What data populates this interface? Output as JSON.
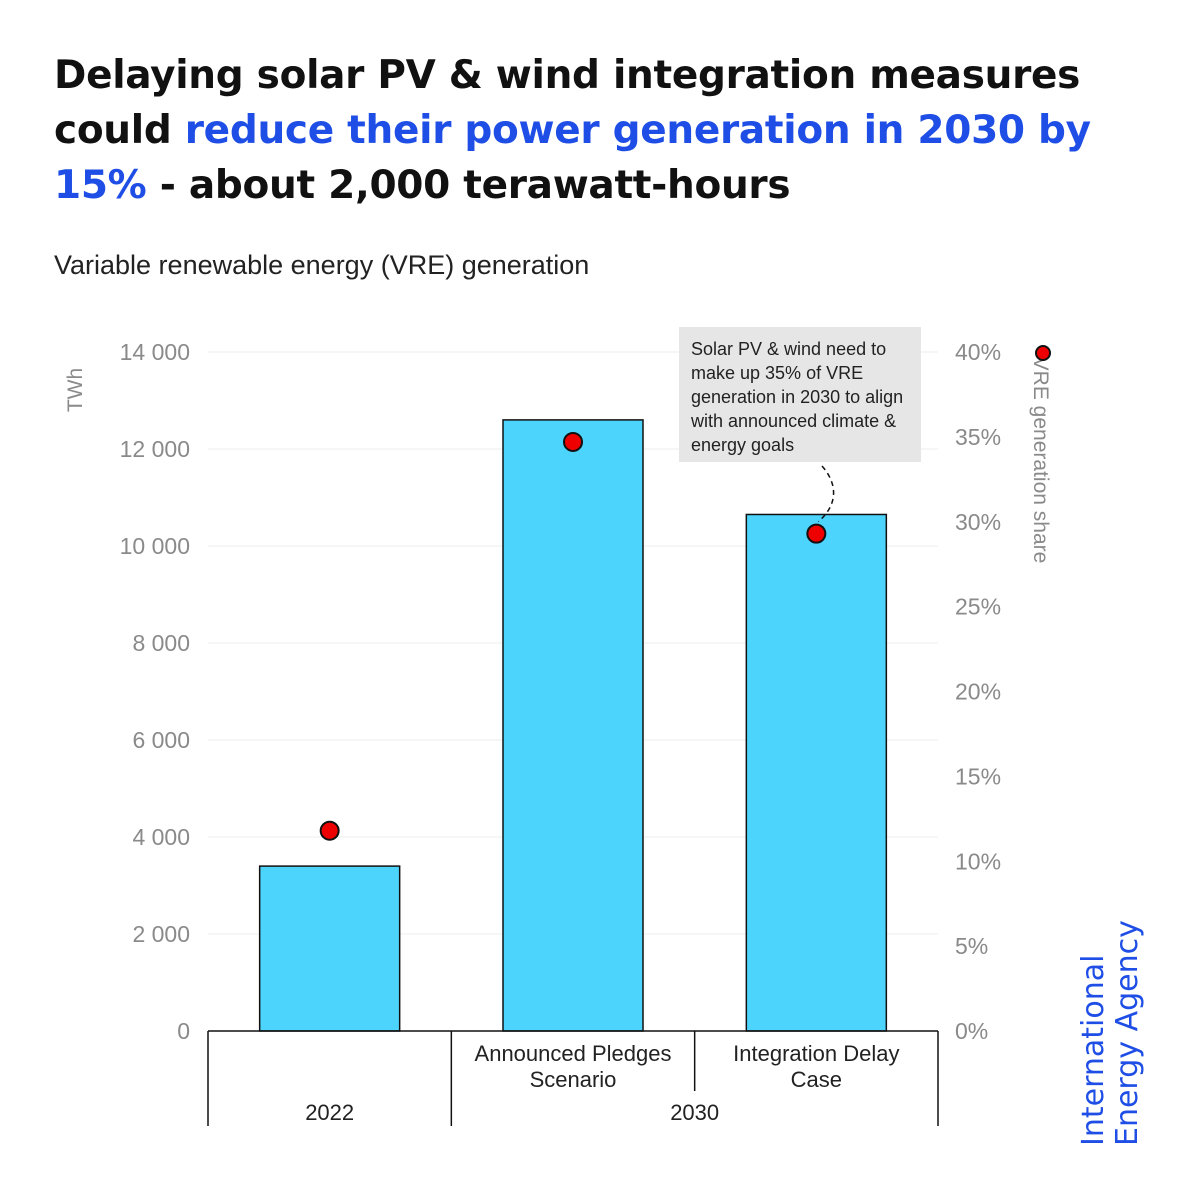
{
  "headline": {
    "part1": "Delaying solar PV & wind integration measures could ",
    "highlight": "reduce their power generation in 2030 by 15%",
    "part2": " - about 2,000 terawatt-hours"
  },
  "subtitle": "Variable renewable energy (VRE) generation",
  "annotation": "Solar PV & wind need to make up 35% of VRE generation in 2030 to align with announced climate & energy goals",
  "brand": {
    "line1": "International",
    "line2": "Energy Agency"
  },
  "colors": {
    "bar": "#4dd4fd",
    "dot": "#ee0000",
    "accent": "#1e4ee6"
  },
  "chart_data": {
    "type": "bar",
    "categories": [
      "",
      "Announced Pledges Scenario",
      "Integration Delay Case"
    ],
    "category_lines": [
      [
        ""
      ],
      [
        "Announced Pledges",
        "Scenario"
      ],
      [
        "Integration Delay",
        "Case"
      ]
    ],
    "groups": [
      {
        "label": "2022",
        "categories": [
          0
        ]
      },
      {
        "label": "2030",
        "categories": [
          1,
          2
        ]
      }
    ],
    "series": [
      {
        "type": "bar",
        "axis": "left",
        "values": [
          3400,
          12600,
          10650
        ]
      },
      {
        "name": "VRE generation share",
        "type": "scatter",
        "axis": "right",
        "values": [
          11.8,
          34.7,
          29.3
        ]
      }
    ],
    "ylabel": "TWh",
    "ylim": [
      0,
      14000
    ],
    "yticks": [
      0,
      2000,
      4000,
      6000,
      8000,
      10000,
      12000,
      14000
    ],
    "ytick_labels": [
      "0",
      "2 000",
      "4 000",
      "6 000",
      "8 000",
      "10 000",
      "12 000",
      "14 000"
    ],
    "y2label": "VRE generation share",
    "y2lim": [
      0,
      40
    ],
    "y2ticks": [
      0,
      5,
      10,
      15,
      20,
      25,
      30,
      35,
      40
    ],
    "y2tick_labels": [
      "0%",
      "5%",
      "10%",
      "15%",
      "20%",
      "25%",
      "30%",
      "35%",
      "40%"
    ],
    "grid": true,
    "legend": "right"
  }
}
